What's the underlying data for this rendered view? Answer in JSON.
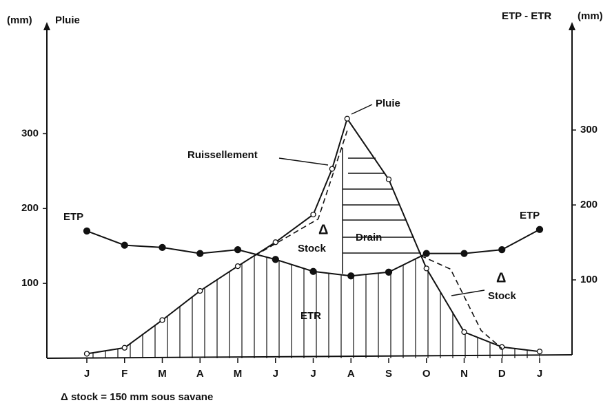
{
  "chart_data": {
    "type": "line",
    "y_unit_left": "(mm)",
    "y_label_left": "Pluie",
    "y_label_right": "ETP - ETR",
    "y_unit_right": "(mm)",
    "categories": [
      "J",
      "F",
      "M",
      "A",
      "M",
      "J",
      "J",
      "A",
      "S",
      "O",
      "N",
      "D",
      "J"
    ],
    "ylim": [
      0,
      440
    ],
    "yticks": [
      100,
      200,
      300
    ],
    "y2lim": [
      0,
      435
    ],
    "y2ticks": [
      100,
      200,
      300
    ],
    "color": "#111111",
    "series": [
      {
        "name": "Pluie",
        "marker": "open",
        "x": [
          0,
          1,
          2,
          3,
          4,
          5,
          6,
          6.5,
          6.9,
          8,
          9,
          10,
          11,
          12
        ],
        "values": [
          6,
          14,
          51,
          90,
          123,
          155,
          192,
          253,
          320,
          239,
          120,
          35,
          15,
          9
        ]
      },
      {
        "name": "ETP",
        "marker": "filled",
        "x": [
          0,
          1,
          2,
          3,
          4,
          5,
          6,
          7,
          8,
          9,
          10,
          11,
          12
        ],
        "values": [
          170,
          151,
          148,
          140,
          145,
          132,
          116,
          110,
          115,
          140,
          140,
          145,
          172
        ]
      },
      {
        "name": "ETR",
        "marker": "hatch",
        "x": [
          0,
          1,
          2,
          3,
          4,
          4.45,
          5,
          6,
          7,
          8,
          8.85,
          9,
          10,
          11,
          12
        ],
        "values": [
          6,
          14,
          51,
          90,
          123,
          137,
          132,
          116,
          110,
          115,
          137,
          120,
          35,
          15,
          9
        ]
      },
      {
        "marker": "dashed",
        "x": [
          4.45,
          6.13,
          6.9,
          null,
          8.85,
          9.64,
          10.45,
          11
        ],
        "values": [
          137,
          186,
          304,
          null,
          137,
          119,
          37,
          13
        ]
      }
    ],
    "annotations": {
      "peak": "Pluie",
      "runoff": "Ruissellement",
      "etp_left": "ETP",
      "etp_right": "ETP",
      "delta1": "Δ",
      "stock1": "Stock",
      "drain": "Drain",
      "etr": "ETR",
      "delta2": "Δ",
      "stock2": "Stock",
      "footnote": "Δ  stock  =  150 mm  sous  savane"
    }
  }
}
